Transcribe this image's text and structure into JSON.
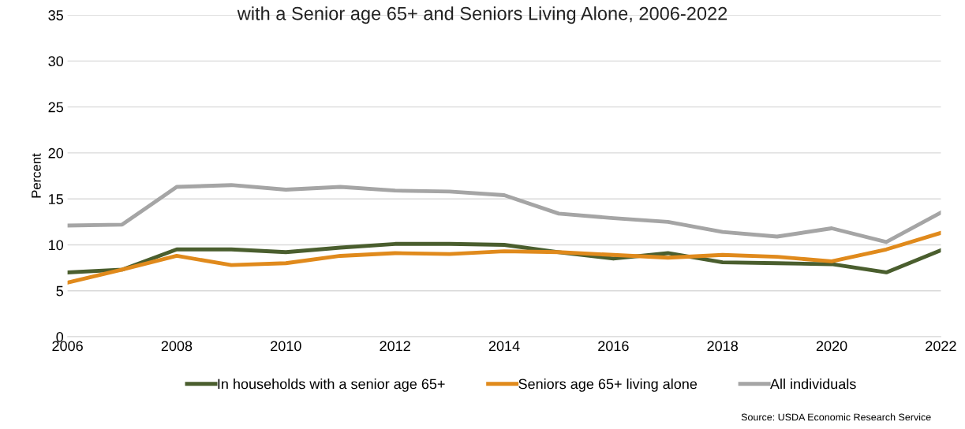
{
  "chart_data": {
    "type": "line",
    "title": "with a Senior age 65+ and Seniors Living Alone, 2006-2022",
    "ylabel": "Percent",
    "x": [
      2006,
      2007,
      2008,
      2009,
      2010,
      2011,
      2012,
      2013,
      2014,
      2015,
      2016,
      2017,
      2018,
      2019,
      2020,
      2021,
      2022
    ],
    "series": [
      {
        "name": "In households with a senior age 65+",
        "color": "#4a5e2e",
        "values": [
          7.0,
          7.3,
          9.5,
          9.5,
          9.2,
          9.7,
          10.1,
          10.1,
          10.0,
          9.2,
          8.5,
          9.1,
          8.1,
          8.0,
          7.9,
          7.0,
          9.4
        ]
      },
      {
        "name": "Seniors age 65+ living alone",
        "color": "#e08a1c",
        "values": [
          5.9,
          7.3,
          8.8,
          7.8,
          8.0,
          8.8,
          9.1,
          9.0,
          9.3,
          9.2,
          8.9,
          8.6,
          8.9,
          8.7,
          8.2,
          9.5,
          11.3
        ]
      },
      {
        "name": "All individuals",
        "color": "#a5a5a5",
        "values": [
          12.1,
          12.2,
          16.3,
          16.5,
          16.0,
          16.3,
          15.9,
          15.8,
          15.4,
          13.4,
          12.9,
          12.5,
          11.4,
          10.9,
          11.8,
          10.3,
          13.5
        ]
      }
    ],
    "xlim": [
      2006,
      2022
    ],
    "xticks": [
      2006,
      2008,
      2010,
      2012,
      2014,
      2016,
      2018,
      2020,
      2022
    ],
    "ylim": [
      0,
      35
    ],
    "yticks": [
      0,
      5,
      10,
      15,
      20,
      25,
      30,
      35
    ],
    "grid": "y",
    "legend": "bottom",
    "marker": "none",
    "line_style": "solid",
    "annotations": [
      "Source: USDA Economic Research Service"
    ]
  }
}
